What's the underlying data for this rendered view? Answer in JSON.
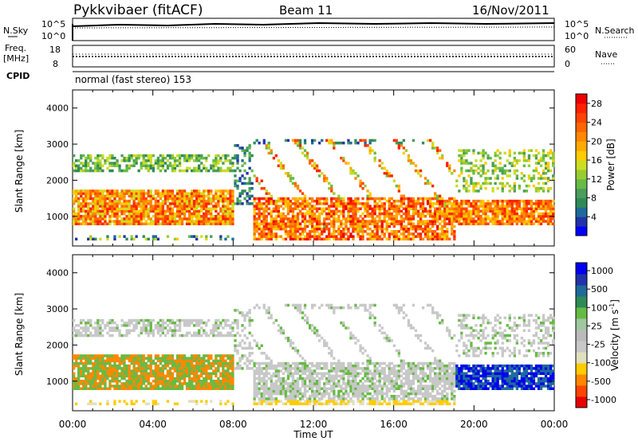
{
  "header": {
    "station": "Pykkvibaer (fitACF)",
    "beam": "Beam 11",
    "date": "16/Nov/2011"
  },
  "noise_panel": {
    "left_label": "N.Sky",
    "right_label": "N.Search",
    "ticks_left": [
      "10^5",
      "10^0"
    ],
    "ticks_right": [
      "10^5",
      "10^0"
    ]
  },
  "freq_panel": {
    "left_label_line1": "Freq.",
    "left_label_line2": "[MHz]",
    "right_label": "Nave",
    "ticks_left": [
      "18",
      "8"
    ],
    "ticks_right": [
      "60",
      "0"
    ]
  },
  "cpid": {
    "label": "CPID",
    "value": "normal (fast stereo) 153"
  },
  "colors": {
    "power_scale": [
      "#0000ff",
      "#2233aa",
      "#1f6a9a",
      "#2e8b57",
      "#4a9d5a",
      "#66bb44",
      "#99cc33",
      "#ccdd22",
      "#ffcc00",
      "#ffaa00",
      "#ff8800",
      "#ff6600",
      "#ff4400",
      "#ff2200",
      "#ee0000"
    ],
    "velocity_scale": [
      "#e80000",
      "#ff4400",
      "#ff8800",
      "#ffcc00",
      "#e0e0c0",
      "#c8c8c8",
      "#bbbbbb",
      "#a0c8a0",
      "#66bb44",
      "#2e8b57",
      "#1f6a9a",
      "#2233aa",
      "#0000ee"
    ]
  },
  "chart_data": [
    {
      "type": "heatmap",
      "title": "",
      "xlabel": "Time UT",
      "ylabel": "Slant Range [km]",
      "ylim": [
        180,
        4500
      ],
      "xlim": [
        0,
        24
      ],
      "yticks": [
        "1000",
        "2000",
        "3000",
        "4000"
      ],
      "xticks": [
        "00:00",
        "04:00",
        "08:00",
        "12:00",
        "16:00",
        "20:00",
        "00:00"
      ],
      "colorbar_label": "Power [dB]",
      "colorbar_ticks": [
        "4",
        "8",
        "12",
        "16",
        "20",
        "24",
        "28"
      ],
      "colorbar_range": [
        0,
        30
      ]
    },
    {
      "type": "heatmap",
      "title": "",
      "xlabel": "Time UT",
      "ylabel": "Slant Range [km]",
      "ylim": [
        180,
        4500
      ],
      "xlim": [
        0,
        24
      ],
      "yticks": [
        "1000",
        "2000",
        "3000",
        "4000"
      ],
      "xticks": [
        "00:00",
        "04:00",
        "08:00",
        "12:00",
        "16:00",
        "20:00",
        "00:00"
      ],
      "colorbar_label": "Velocity [m s",
      "colorbar_label_sup": "-1",
      "colorbar_label_close": "]",
      "colorbar_ticks": [
        "1000",
        "500",
        "100",
        "25",
        "-25",
        "-100",
        "-500",
        "-1000"
      ]
    }
  ]
}
